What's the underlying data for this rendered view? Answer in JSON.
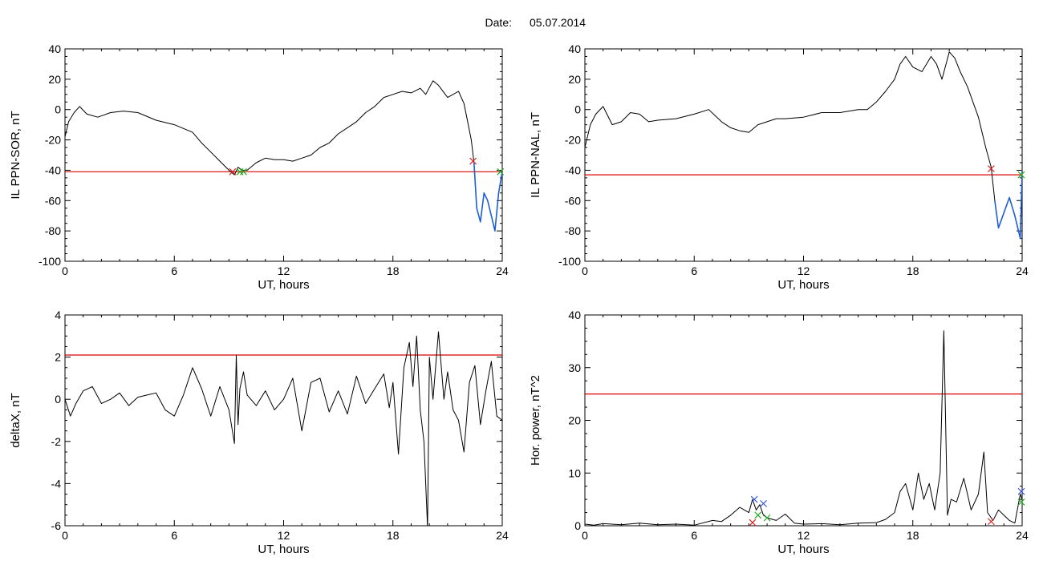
{
  "header": {
    "date_label": "Date:",
    "date_value": "05.07.2014"
  },
  "colors": {
    "trace": "#000000",
    "threshold": "#dd0000",
    "event_segment": "#1f5fd6",
    "marker_start": "#dd2222",
    "marker_end": "#22aa22",
    "marker_peak": "#3355dd"
  },
  "chart_data": [
    {
      "id": "il-ppn-sor",
      "type": "line",
      "title": "",
      "xlabel": "UT, hours",
      "ylabel": "IL PPN-SOR, nT",
      "xlim": [
        0,
        24
      ],
      "ylim": [
        -100,
        40
      ],
      "xticks": [
        0,
        6,
        12,
        18,
        24
      ],
      "yticks": [
        -100,
        -80,
        -60,
        -40,
        -20,
        0,
        20,
        40
      ],
      "threshold": -41,
      "series": [
        {
          "x": [
            0,
            0.2,
            0.5,
            0.8,
            1.2,
            1.8,
            2.5,
            3.2,
            4.0,
            5.0,
            6.0,
            7.0,
            7.5,
            8.0,
            8.5,
            9.0,
            9.3,
            9.5,
            9.7,
            10.0,
            10.5,
            11.0,
            11.5,
            12.0,
            12.5,
            13.0,
            13.5,
            14.0,
            14.5,
            15.0,
            15.5,
            16.0,
            16.5,
            17.0,
            17.5,
            18.0,
            18.5,
            19.0,
            19.5,
            19.8,
            20.2,
            20.5,
            21.0,
            21.3,
            21.6,
            21.9,
            22.1,
            22.3,
            22.45,
            22.6,
            22.8,
            23.0,
            23.2,
            23.4,
            23.6,
            23.8,
            24.0
          ],
          "y": [
            -18,
            -8,
            -2,
            2,
            -3,
            -5,
            -2,
            -1,
            -2,
            -7,
            -10,
            -15,
            -22,
            -28,
            -34,
            -40,
            -43,
            -38,
            -40,
            -40,
            -35,
            -32,
            -33,
            -33,
            -34,
            -32,
            -30,
            -25,
            -22,
            -16,
            -12,
            -8,
            -2,
            2,
            8,
            10,
            12,
            11,
            14,
            10,
            19,
            16,
            8,
            10,
            12,
            4,
            -8,
            -20,
            -35,
            -65,
            -74,
            -55,
            -60,
            -70,
            -80,
            -55,
            -41
          ]
        }
      ],
      "event_segment": {
        "x_start": 22.45,
        "x_end": 24.0
      },
      "markers": [
        {
          "x": 9.2,
          "y": -41,
          "kind": "start"
        },
        {
          "x": 9.6,
          "y": -41,
          "kind": "end"
        },
        {
          "x": 9.8,
          "y": -41,
          "kind": "end"
        },
        {
          "x": 22.4,
          "y": -34,
          "kind": "start"
        },
        {
          "x": 23.9,
          "y": -41,
          "kind": "end"
        }
      ]
    },
    {
      "id": "il-ppn-nal",
      "type": "line",
      "title": "",
      "xlabel": "UT, hours",
      "ylabel": "IL PPN-NAL, nT",
      "xlim": [
        0,
        24
      ],
      "ylim": [
        -100,
        40
      ],
      "xticks": [
        0,
        6,
        12,
        18,
        24
      ],
      "yticks": [
        -100,
        -80,
        -60,
        -40,
        -20,
        0,
        20,
        40
      ],
      "threshold": -43,
      "series": [
        {
          "x": [
            0,
            0.3,
            0.6,
            1.0,
            1.5,
            2.0,
            2.5,
            3.0,
            3.5,
            4.0,
            5.0,
            6.0,
            6.8,
            7.5,
            8.0,
            8.5,
            9.0,
            9.5,
            10.0,
            10.5,
            11.0,
            12.0,
            13.0,
            14.0,
            15.0,
            15.5,
            16.0,
            16.5,
            17.0,
            17.3,
            17.6,
            18.0,
            18.5,
            19.0,
            19.3,
            19.6,
            20.0,
            20.3,
            20.6,
            21.0,
            21.3,
            21.6,
            22.0,
            22.3,
            22.5,
            22.7,
            23.0,
            23.3,
            23.6,
            23.9,
            24.0
          ],
          "y": [
            -25,
            -10,
            -3,
            2,
            -10,
            -8,
            -2,
            -3,
            -8,
            -7,
            -6,
            -3,
            0,
            -8,
            -12,
            -14,
            -15,
            -10,
            -8,
            -6,
            -6,
            -5,
            -2,
            -2,
            0,
            0,
            5,
            12,
            20,
            30,
            35,
            28,
            25,
            35,
            30,
            20,
            38,
            34,
            25,
            15,
            5,
            -5,
            -25,
            -38,
            -60,
            -78,
            -68,
            -58,
            -70,
            -85,
            -40
          ]
        }
      ],
      "event_segment": {
        "x_start": 22.4,
        "x_end": 24.0
      },
      "markers": [
        {
          "x": 22.3,
          "y": -39,
          "kind": "start"
        },
        {
          "x": 24.0,
          "y": -43,
          "kind": "end"
        }
      ]
    },
    {
      "id": "delta-x",
      "type": "line",
      "title": "",
      "xlabel": "UT, hours",
      "ylabel": "deltaX, nT",
      "xlim": [
        0,
        24
      ],
      "ylim": [
        -6,
        4
      ],
      "xticks": [
        0,
        6,
        12,
        18,
        24
      ],
      "yticks": [
        -6,
        -4,
        -2,
        0,
        2,
        4
      ],
      "threshold": 2.1,
      "series": [
        {
          "x": [
            0,
            0.3,
            0.6,
            1.0,
            1.5,
            2.0,
            2.5,
            3.0,
            3.5,
            4.0,
            4.5,
            5.0,
            5.5,
            6.0,
            6.5,
            7.0,
            7.5,
            8.0,
            8.5,
            9.0,
            9.3,
            9.4,
            9.5,
            9.6,
            9.8,
            10.0,
            10.5,
            11.0,
            11.5,
            12.0,
            12.5,
            13.0,
            13.5,
            14.0,
            14.5,
            15.0,
            15.5,
            16.0,
            16.5,
            17.0,
            17.5,
            17.8,
            18.0,
            18.3,
            18.6,
            18.9,
            19.1,
            19.3,
            19.5,
            19.7,
            19.9,
            20.0,
            20.2,
            20.5,
            20.8,
            21.0,
            21.3,
            21.6,
            21.9,
            22.2,
            22.5,
            22.8,
            23.1,
            23.4,
            23.7,
            24.0
          ],
          "y": [
            0,
            -0.8,
            -0.2,
            0.4,
            0.6,
            -0.2,
            0,
            0.3,
            -0.3,
            0.1,
            0.2,
            0.3,
            -0.5,
            -0.8,
            0.2,
            1.5,
            0.5,
            -0.8,
            0.6,
            -0.5,
            -2.1,
            2.1,
            -1.2,
            0.5,
            1.3,
            0.2,
            -0.3,
            0.4,
            -0.5,
            0,
            1.0,
            -1.5,
            0.8,
            1.0,
            -0.6,
            0.4,
            -0.7,
            1.1,
            -0.2,
            0.5,
            1.2,
            -0.4,
            0.8,
            -2.6,
            1.5,
            2.7,
            0.6,
            3.0,
            -0.5,
            -2.0,
            -6.1,
            2.0,
            0.0,
            3.2,
            0.0,
            1.3,
            -0.5,
            -1.0,
            -2.5,
            0.8,
            1.6,
            -1.2,
            0.4,
            1.8,
            -0.8,
            -1.0
          ]
        }
      ],
      "markers": []
    },
    {
      "id": "hor-power",
      "type": "line",
      "title": "",
      "xlabel": "UT, hours",
      "ylabel": "Hor. power, nT^2",
      "xlim": [
        0,
        24
      ],
      "ylim": [
        0,
        40
      ],
      "xticks": [
        0,
        6,
        12,
        18,
        24
      ],
      "yticks": [
        0,
        10,
        20,
        30,
        40
      ],
      "threshold": 25,
      "series": [
        {
          "x": [
            0,
            0.5,
            1.0,
            2.0,
            3.0,
            4.0,
            5.0,
            6.0,
            7.0,
            7.5,
            8.0,
            8.5,
            9.0,
            9.2,
            9.4,
            9.6,
            9.8,
            10.0,
            10.5,
            11.0,
            11.5,
            12.0,
            13.0,
            14.0,
            15.0,
            16.0,
            16.5,
            17.0,
            17.3,
            17.6,
            18.0,
            18.3,
            18.6,
            18.9,
            19.2,
            19.5,
            19.7,
            19.9,
            20.1,
            20.4,
            20.8,
            21.2,
            21.6,
            21.9,
            22.1,
            22.4,
            22.7,
            23.0,
            23.3,
            23.6,
            23.9,
            24.0
          ],
          "y": [
            0.3,
            0.1,
            0.4,
            0.2,
            0.5,
            0.2,
            0.3,
            0.1,
            1.0,
            0.8,
            2.0,
            3.5,
            2.5,
            5.0,
            3.0,
            4.0,
            2.0,
            1.5,
            1.0,
            2.2,
            0.5,
            0.3,
            0.4,
            0.2,
            0.5,
            0.6,
            1.2,
            2.5,
            6.5,
            8.0,
            3.0,
            10.0,
            5.0,
            8.0,
            3.0,
            10.0,
            37.0,
            2.0,
            5.0,
            4.5,
            9.0,
            3.0,
            6.0,
            14.0,
            2.5,
            1.0,
            3.0,
            2.0,
            1.0,
            0.5,
            6.0,
            5.0
          ]
        }
      ],
      "markers": [
        {
          "x": 9.3,
          "y": 5.0,
          "kind": "peak"
        },
        {
          "x": 9.8,
          "y": 4.2,
          "kind": "peak"
        },
        {
          "x": 9.5,
          "y": 2.0,
          "kind": "end"
        },
        {
          "x": 10.0,
          "y": 1.5,
          "kind": "end"
        },
        {
          "x": 9.2,
          "y": 0.6,
          "kind": "start"
        },
        {
          "x": 22.3,
          "y": 0.8,
          "kind": "start"
        },
        {
          "x": 24.0,
          "y": 6.5,
          "kind": "peak"
        },
        {
          "x": 24.0,
          "y": 4.5,
          "kind": "end"
        }
      ]
    }
  ]
}
